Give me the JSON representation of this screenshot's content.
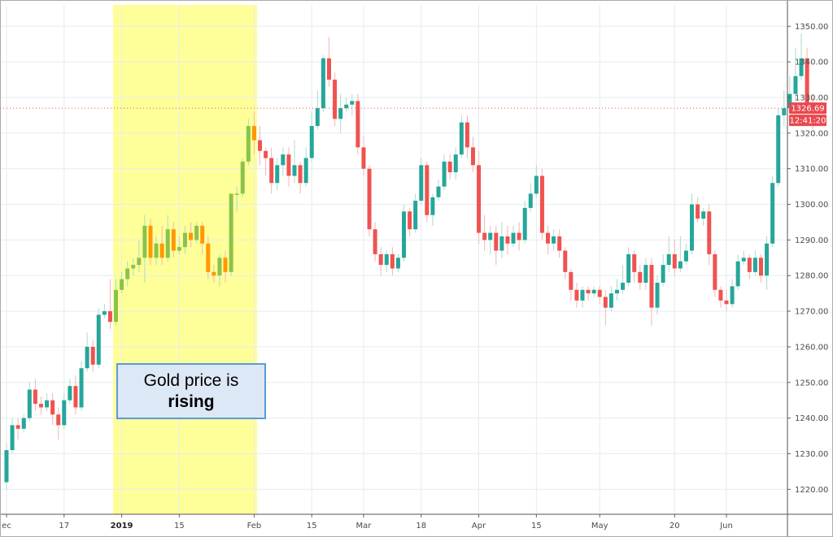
{
  "chart_data": {
    "type": "candlestick",
    "title": "",
    "xlabel": "",
    "ylabel": "",
    "ylim": [
      1213,
      1356
    ],
    "y_ticks": [
      1220,
      1230,
      1240,
      1250,
      1260,
      1270,
      1280,
      1290,
      1300,
      1310,
      1320,
      1330,
      1340,
      1350
    ],
    "y_tick_labels": [
      "1220.00",
      "1230.00",
      "1240.00",
      "1250.00",
      "1260.00",
      "1270.00",
      "1280.00",
      "1290.00",
      "1300.00",
      "1310.00",
      "1320.00",
      "1330.00",
      "1340.00",
      "1350.00"
    ],
    "x_ticks": [
      {
        "label": "ec",
        "index": 0,
        "bold": false
      },
      {
        "label": "17",
        "index": 10,
        "bold": false
      },
      {
        "label": "2019",
        "index": 20,
        "bold": true
      },
      {
        "label": "15",
        "index": 30,
        "bold": false
      },
      {
        "label": "Feb",
        "index": 43,
        "bold": false
      },
      {
        "label": "15",
        "index": 53,
        "bold": false
      },
      {
        "label": "Mar",
        "index": 62,
        "bold": false
      },
      {
        "label": "18",
        "index": 72,
        "bold": false
      },
      {
        "label": "Apr",
        "index": 82,
        "bold": false
      },
      {
        "label": "15",
        "index": 92,
        "bold": false
      },
      {
        "label": "May",
        "index": 103,
        "bold": false
      },
      {
        "label": "20",
        "index": 116,
        "bold": false
      },
      {
        "label": "Jun",
        "index": 125,
        "bold": false
      }
    ],
    "grid": true,
    "colors": {
      "up": "#26a69a",
      "down": "#ef5350",
      "highlight_up": "#8bc34a",
      "highlight_down": "#ff9800",
      "highlight_bg": "#ffff99"
    },
    "highlight_range": [
      19,
      43
    ],
    "candles": [
      [
        1222,
        1231,
        1220,
        1233
      ],
      [
        1231,
        1238,
        1230,
        1240
      ],
      [
        1238,
        1237,
        1234,
        1240
      ],
      [
        1237,
        1240,
        1236,
        1241
      ],
      [
        1240,
        1248,
        1239,
        1250
      ],
      [
        1248,
        1244,
        1242,
        1251
      ],
      [
        1244,
        1243,
        1241,
        1246
      ],
      [
        1243,
        1245,
        1242,
        1247
      ],
      [
        1245,
        1241,
        1238,
        1247
      ],
      [
        1241,
        1238,
        1234,
        1243
      ],
      [
        1238,
        1245,
        1237,
        1247
      ],
      [
        1245,
        1249,
        1244,
        1251
      ],
      [
        1249,
        1243,
        1241,
        1252
      ],
      [
        1243,
        1254,
        1242,
        1256
      ],
      [
        1254,
        1260,
        1253,
        1264
      ],
      [
        1260,
        1255,
        1253,
        1262
      ],
      [
        1255,
        1269,
        1254,
        1271
      ],
      [
        1269,
        1270,
        1268,
        1272
      ],
      [
        1270,
        1267,
        1265,
        1279
      ],
      [
        1267,
        1276,
        1266,
        1279
      ],
      [
        1276,
        1279,
        1275,
        1281
      ],
      [
        1279,
        1282,
        1277,
        1284
      ],
      [
        1282,
        1283,
        1280,
        1285
      ],
      [
        1283,
        1285,
        1281,
        1290
      ],
      [
        1285,
        1294,
        1278,
        1297
      ],
      [
        1294,
        1285,
        1283,
        1296
      ],
      [
        1285,
        1289,
        1283,
        1291
      ],
      [
        1289,
        1285,
        1283,
        1294
      ],
      [
        1285,
        1293,
        1284,
        1297
      ],
      [
        1293,
        1287,
        1285,
        1295
      ],
      [
        1287,
        1288,
        1286,
        1291
      ],
      [
        1288,
        1292,
        1286,
        1294
      ],
      [
        1292,
        1290,
        1288,
        1295
      ],
      [
        1290,
        1294,
        1289,
        1295
      ],
      [
        1294,
        1289,
        1286,
        1295
      ],
      [
        1289,
        1281,
        1279,
        1291
      ],
      [
        1281,
        1280,
        1278,
        1283
      ],
      [
        1280,
        1285,
        1277,
        1286
      ],
      [
        1285,
        1281,
        1278,
        1287
      ],
      [
        1281,
        1303,
        1280,
        1303
      ],
      [
        1303,
        1303,
        1298,
        1305
      ],
      [
        1303,
        1312,
        1302,
        1313
      ],
      [
        1312,
        1322,
        1311,
        1324
      ],
      [
        1322,
        1318,
        1314,
        1326
      ],
      [
        1318,
        1315,
        1311,
        1322
      ],
      [
        1315,
        1313,
        1308,
        1316
      ],
      [
        1313,
        1306,
        1303,
        1316
      ],
      [
        1306,
        1311,
        1304,
        1313
      ],
      [
        1311,
        1314,
        1308,
        1316
      ],
      [
        1314,
        1308,
        1305,
        1316
      ],
      [
        1308,
        1311,
        1306,
        1318
      ],
      [
        1311,
        1306,
        1303,
        1312
      ],
      [
        1306,
        1313,
        1305,
        1316
      ],
      [
        1313,
        1322,
        1312,
        1326
      ],
      [
        1322,
        1327,
        1321,
        1332
      ],
      [
        1327,
        1341,
        1326,
        1342
      ],
      [
        1341,
        1335,
        1333,
        1347
      ],
      [
        1335,
        1324,
        1322,
        1337
      ],
      [
        1324,
        1327,
        1320,
        1331
      ],
      [
        1327,
        1328,
        1326,
        1330
      ],
      [
        1328,
        1329,
        1325,
        1331
      ],
      [
        1329,
        1316,
        1314,
        1331
      ],
      [
        1316,
        1310,
        1308,
        1319
      ],
      [
        1310,
        1293,
        1291,
        1311
      ],
      [
        1293,
        1286,
        1284,
        1295
      ],
      [
        1286,
        1283,
        1280,
        1288
      ],
      [
        1283,
        1286,
        1281,
        1287
      ],
      [
        1286,
        1282,
        1280,
        1288
      ],
      [
        1282,
        1285,
        1281,
        1286
      ],
      [
        1285,
        1298,
        1284,
        1300
      ],
      [
        1298,
        1293,
        1291,
        1299
      ],
      [
        1293,
        1301,
        1292,
        1303
      ],
      [
        1301,
        1311,
        1300,
        1313
      ],
      [
        1311,
        1297,
        1295,
        1312
      ],
      [
        1297,
        1302,
        1294,
        1303
      ],
      [
        1302,
        1305,
        1301,
        1307
      ],
      [
        1305,
        1312,
        1304,
        1314
      ],
      [
        1312,
        1309,
        1307,
        1314
      ],
      [
        1309,
        1314,
        1307,
        1316
      ],
      [
        1314,
        1323,
        1313,
        1325
      ],
      [
        1323,
        1316,
        1313,
        1325
      ],
      [
        1316,
        1311,
        1309,
        1319
      ],
      [
        1311,
        1292,
        1289,
        1315
      ],
      [
        1292,
        1290,
        1287,
        1297
      ],
      [
        1290,
        1292,
        1286,
        1294
      ],
      [
        1292,
        1287,
        1283,
        1294
      ],
      [
        1287,
        1291,
        1285,
        1295
      ],
      [
        1291,
        1289,
        1286,
        1294
      ],
      [
        1289,
        1292,
        1288,
        1294
      ],
      [
        1292,
        1290,
        1287,
        1295
      ],
      [
        1290,
        1299,
        1289,
        1301
      ],
      [
        1299,
        1303,
        1298,
        1306
      ],
      [
        1303,
        1308,
        1302,
        1311
      ],
      [
        1308,
        1292,
        1290,
        1310
      ],
      [
        1292,
        1289,
        1286,
        1294
      ],
      [
        1289,
        1291,
        1287,
        1293
      ],
      [
        1291,
        1287,
        1285,
        1293
      ],
      [
        1287,
        1281,
        1279,
        1288
      ],
      [
        1281,
        1276,
        1273,
        1282
      ],
      [
        1276,
        1273,
        1271,
        1278
      ],
      [
        1273,
        1276,
        1271,
        1277
      ],
      [
        1276,
        1275,
        1273,
        1277
      ],
      [
        1275,
        1276,
        1274,
        1277
      ],
      [
        1276,
        1274,
        1272,
        1277
      ],
      [
        1274,
        1271,
        1266,
        1276
      ],
      [
        1271,
        1275,
        1270,
        1277
      ],
      [
        1275,
        1276,
        1273,
        1279
      ],
      [
        1276,
        1278,
        1275,
        1283
      ],
      [
        1278,
        1286,
        1277,
        1288
      ],
      [
        1286,
        1281,
        1278,
        1287
      ],
      [
        1281,
        1278,
        1276,
        1283
      ],
      [
        1278,
        1283,
        1276,
        1285
      ],
      [
        1283,
        1271,
        1266,
        1285
      ],
      [
        1271,
        1278,
        1269,
        1280
      ],
      [
        1278,
        1283,
        1277,
        1286
      ],
      [
        1283,
        1286,
        1281,
        1291
      ],
      [
        1286,
        1282,
        1280,
        1290
      ],
      [
        1282,
        1284,
        1281,
        1291
      ],
      [
        1284,
        1287,
        1283,
        1289
      ],
      [
        1287,
        1300,
        1286,
        1303
      ],
      [
        1300,
        1296,
        1295,
        1302
      ],
      [
        1296,
        1298,
        1294,
        1299
      ],
      [
        1298,
        1286,
        1283,
        1300
      ],
      [
        1286,
        1276,
        1274,
        1287
      ],
      [
        1276,
        1273,
        1271,
        1277
      ],
      [
        1273,
        1272,
        1270,
        1276
      ],
      [
        1272,
        1277,
        1271,
        1279
      ],
      [
        1277,
        1284,
        1276,
        1286
      ],
      [
        1284,
        1285,
        1283,
        1287
      ],
      [
        1285,
        1281,
        1279,
        1286
      ],
      [
        1281,
        1285,
        1280,
        1287
      ],
      [
        1285,
        1280,
        1278,
        1286
      ],
      [
        1280,
        1289,
        1276,
        1291
      ],
      [
        1289,
        1306,
        1288,
        1308
      ],
      [
        1306,
        1325,
        1305,
        1327
      ],
      [
        1325,
        1327,
        1322,
        1332
      ],
      [
        1327,
        1331,
        1326,
        1336
      ],
      [
        1331,
        1336,
        1329,
        1344
      ],
      [
        1336,
        1341,
        1335,
        1348
      ],
      [
        1341,
        1328,
        1326,
        1344
      ],
      [
        1328,
        1327,
        1321,
        1331
      ]
    ],
    "last_price": "1326.69",
    "countdown": "12:41:20",
    "annotation": {
      "line1": "Gold price is",
      "line2": "rising"
    }
  }
}
